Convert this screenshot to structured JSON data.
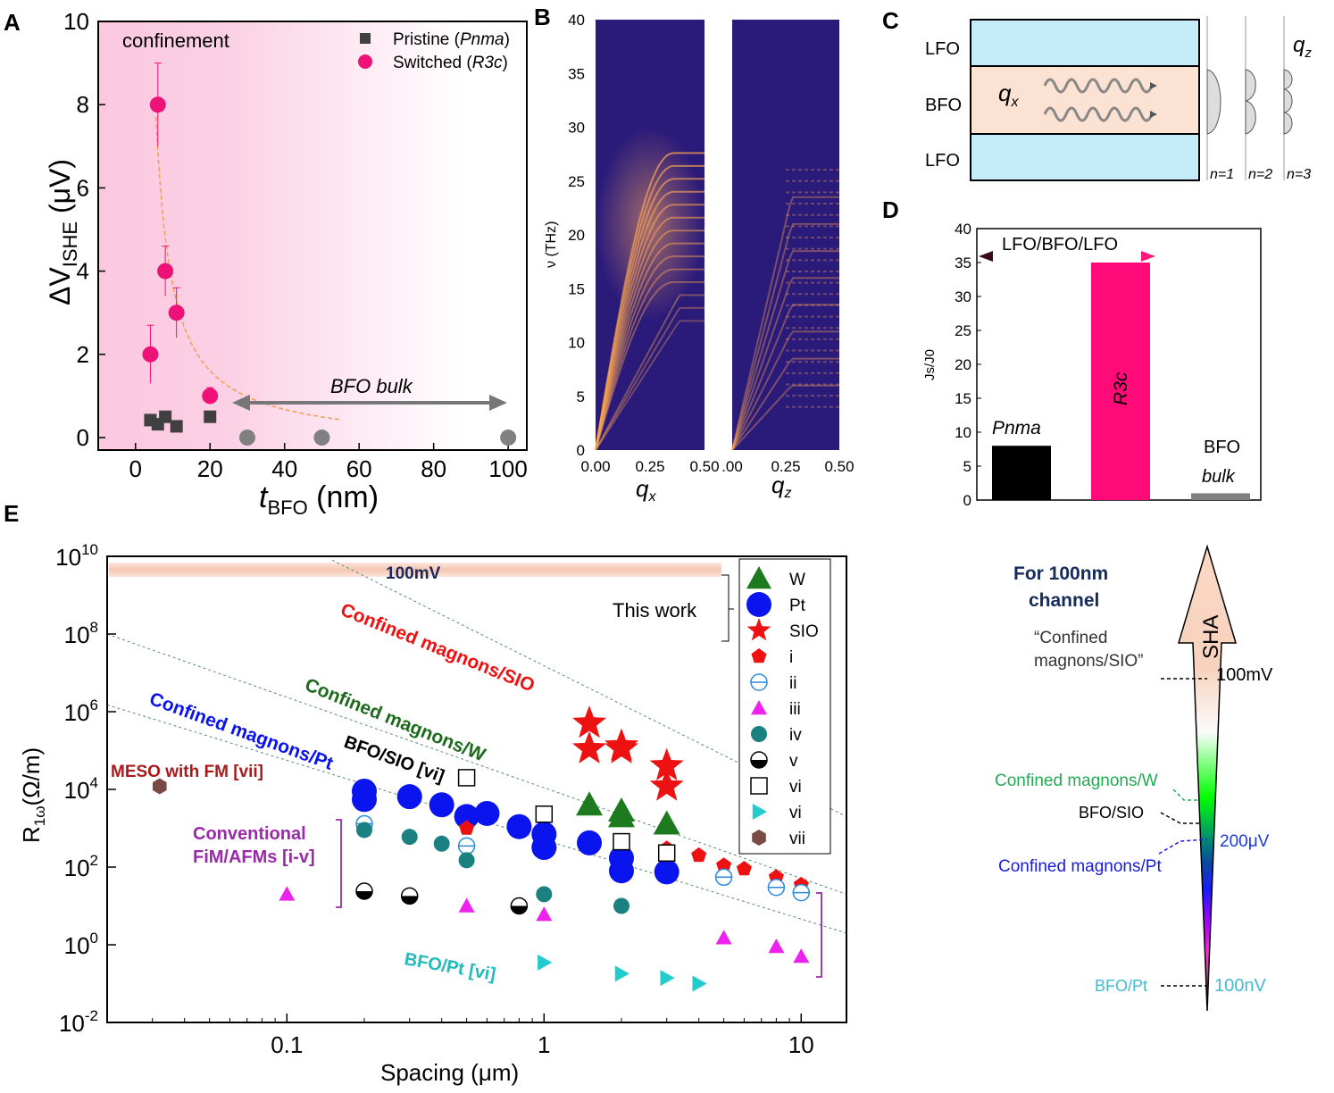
{
  "panels": {
    "A": "A",
    "B": "B",
    "C": "C",
    "D": "D",
    "E": "E"
  },
  "chart_data": [
    {
      "id": "A",
      "type": "scatter",
      "xlabel_main": "t",
      "xlabel_sub": "BFO",
      "xlabel_unit": " (nm)",
      "ylabel_main": "ΔV",
      "ylabel_sub": "ISHE",
      "ylabel_unit": " (μV)",
      "xlim": [
        -10,
        105
      ],
      "ylim": [
        -0.3,
        10
      ],
      "xticks": [
        0,
        20,
        40,
        60,
        80,
        100
      ],
      "yticks": [
        0,
        2,
        4,
        6,
        8,
        10
      ],
      "annotation_confinement": "confinement",
      "annotation_bulk": "BFO bulk",
      "legend": [
        {
          "label": "Pristine (",
          "italic": "Pnma",
          "close": ")",
          "color": "#404040",
          "marker": "square"
        },
        {
          "label": "Switched (",
          "italic": "R3c",
          "close": ")",
          "color": "#ee1177",
          "marker": "circle"
        }
      ],
      "series": [
        {
          "name": "Pristine",
          "points": [
            [
              4,
              0.42
            ],
            [
              6,
              0.32
            ],
            [
              8,
              0.5
            ],
            [
              11,
              0.27
            ],
            [
              20,
              0.5
            ]
          ]
        },
        {
          "name": "Switched",
          "points": [
            [
              4,
              2.0
            ],
            [
              6,
              8.0
            ],
            [
              8,
              4.0
            ],
            [
              11,
              3.0
            ],
            [
              20,
              1.0
            ]
          ],
          "errors": [
            0.7,
            1.0,
            0.6,
            0.6,
            0.2
          ]
        },
        {
          "name": "Bulk",
          "color": "#808080",
          "points": [
            [
              30,
              0
            ],
            [
              50,
              0
            ],
            [
              100,
              0
            ]
          ]
        }
      ],
      "fit_color": "#f0a050"
    },
    {
      "id": "B",
      "type": "heatmap",
      "ylabel": "ν (THz)",
      "ylim": [
        0,
        40
      ],
      "yticks": [
        0,
        5,
        10,
        15,
        20,
        25,
        30,
        35,
        40
      ],
      "left": {
        "xlabel": "q",
        "xsub": "x",
        "xticks": [
          "0.00",
          "0.25",
          "0.50"
        ]
      },
      "right": {
        "xlabel": "q",
        "xsub": "z",
        "xticks": [
          ".00",
          "0.25",
          "0.50"
        ]
      }
    },
    {
      "id": "C",
      "type": "diagram",
      "layers": [
        "LFO",
        "BFO",
        "LFO"
      ],
      "wave_label": "q",
      "wave_sub": "x",
      "mode_label": "q",
      "mode_sub": "z",
      "modes": [
        "n=1",
        "n=2",
        "n=3"
      ]
    },
    {
      "id": "D",
      "type": "bar",
      "ylabel": "Js/J0",
      "ylim": [
        0,
        40
      ],
      "yticks": [
        0,
        5,
        10,
        15,
        20,
        25,
        30,
        35,
        40
      ],
      "categories": [
        "Pnma",
        "R3c",
        "BFO bulk"
      ],
      "values": [
        8,
        35,
        1
      ],
      "colors": [
        "#000000",
        "#ff0a78",
        "#808080"
      ],
      "arrow_label": "LFO/BFO/LFO",
      "bulk_line1": "BFO",
      "bulk_line2": "bulk"
    },
    {
      "id": "E",
      "type": "scatter",
      "xscale": "log",
      "yscale": "log",
      "xlabel": "Spacing (μm)",
      "ylabel_main": "R",
      "ylabel_sub": "1ω",
      "ylabel_unit": "(Ω/m)",
      "xlim": [
        0.02,
        15
      ],
      "ylim_exp": [
        -2,
        10
      ],
      "xticks": [
        {
          "v": 0.1,
          "label": "0.1"
        },
        {
          "v": 1,
          "label": "1"
        },
        {
          "v": 10,
          "label": "10"
        }
      ],
      "yticks_exp": [
        -2,
        0,
        2,
        4,
        6,
        8,
        10
      ],
      "band_label": "100mV",
      "this_work": "This work",
      "annotations": {
        "sio": "Confined magnons/SIO",
        "w": "Confined magnons/W",
        "pt": "Confined magnons/Pt",
        "bfosio": "BFO/SIO [vi]",
        "meso": "MESO with FM [vii]",
        "conv1": "Conventional",
        "conv2": "FiM/AFMs [i-v]",
        "bfopt": "BFO/Pt [vi]"
      },
      "legend": [
        "W",
        "Pt",
        "SIO",
        "i",
        "ii",
        "iii",
        "iv",
        "v",
        "vi",
        "vi",
        "vii"
      ],
      "series": [
        {
          "name": "W",
          "marker": "triangle",
          "color": "#1e7a1e",
          "points": [
            [
              1.5,
              4000
            ],
            [
              2,
              2800
            ],
            [
              2,
              2000
            ],
            [
              3,
              1300
            ]
          ]
        },
        {
          "name": "Pt",
          "marker": "circle",
          "color": "#0a14ee",
          "points": [
            [
              0.2,
              9000
            ],
            [
              0.2,
              5500
            ],
            [
              0.3,
              6500
            ],
            [
              0.4,
              4000
            ],
            [
              0.5,
              2000
            ],
            [
              0.6,
              2400
            ],
            [
              0.8,
              1100
            ],
            [
              1,
              700
            ],
            [
              1,
              320
            ],
            [
              1.5,
              420
            ],
            [
              2,
              170
            ],
            [
              2,
              80
            ],
            [
              3,
              75
            ]
          ]
        },
        {
          "name": "SIO",
          "marker": "star",
          "color": "#ee1111",
          "points": [
            [
              1.5,
              500000
            ],
            [
              1.5,
              110000
            ],
            [
              2,
              130000
            ],
            [
              2,
              110000
            ],
            [
              3,
              40000
            ],
            [
              3,
              12000
            ]
          ]
        },
        {
          "name": "i",
          "marker": "pentagon",
          "color": "#ee1111",
          "points": [
            [
              0.5,
              1000
            ],
            [
              3,
              300
            ],
            [
              4,
              200
            ],
            [
              5,
              110
            ],
            [
              6,
              90
            ],
            [
              8,
              55
            ],
            [
              10,
              35
            ]
          ]
        },
        {
          "name": "ii",
          "marker": "ocircle",
          "color": "#2a8adf",
          "points": [
            [
              0.2,
              1300
            ],
            [
              0.5,
              350
            ],
            [
              5,
              55
            ],
            [
              8,
              30
            ],
            [
              10,
              22
            ]
          ]
        },
        {
          "name": "iii",
          "marker": "triangle",
          "color": "#ee22ee",
          "points": [
            [
              0.1,
              20
            ],
            [
              0.5,
              10
            ],
            [
              1,
              6
            ],
            [
              5,
              1.5
            ],
            [
              8,
              0.9
            ],
            [
              10,
              0.5
            ]
          ]
        },
        {
          "name": "iv",
          "marker": "circle",
          "color": "#1a8080",
          "points": [
            [
              0.2,
              900
            ],
            [
              0.3,
              600
            ],
            [
              0.4,
              400
            ],
            [
              0.5,
              150
            ],
            [
              1,
              20
            ],
            [
              2,
              10
            ]
          ]
        },
        {
          "name": "v",
          "marker": "halfcircle",
          "color": "#000000",
          "points": [
            [
              0.2,
              24
            ],
            [
              0.3,
              18
            ],
            [
              0.8,
              10
            ]
          ]
        },
        {
          "name": "vi",
          "marker": "osquare",
          "color": "#000000",
          "points": [
            [
              0.5,
              20000
            ],
            [
              1,
              2300
            ],
            [
              2,
              450
            ],
            [
              3,
              230
            ]
          ]
        },
        {
          "name": "vi",
          "marker": "rtriangle",
          "color": "#22cccc",
          "points": [
            [
              1,
              0.35
            ],
            [
              2,
              0.18
            ],
            [
              3,
              0.14
            ],
            [
              4,
              0.1
            ]
          ]
        },
        {
          "name": "vii",
          "marker": "hexagon",
          "color": "#7a4a44",
          "points": [
            [
              0.032,
              12000
            ]
          ]
        }
      ]
    }
  ],
  "scale_bar": {
    "title1": "For 100nm",
    "title2": "channel",
    "sio_q1": "“Confined",
    "sio_q2": "magnons/SIO”",
    "sha": "SHA",
    "l100mv": "100mV",
    "lw": "Confined magnons/W",
    "lbfosio": "BFO/SIO",
    "l200uv": "200μV",
    "lpt": "Confined magnons/Pt",
    "lbfopt": "BFO/Pt",
    "l100nv": "100nV"
  }
}
